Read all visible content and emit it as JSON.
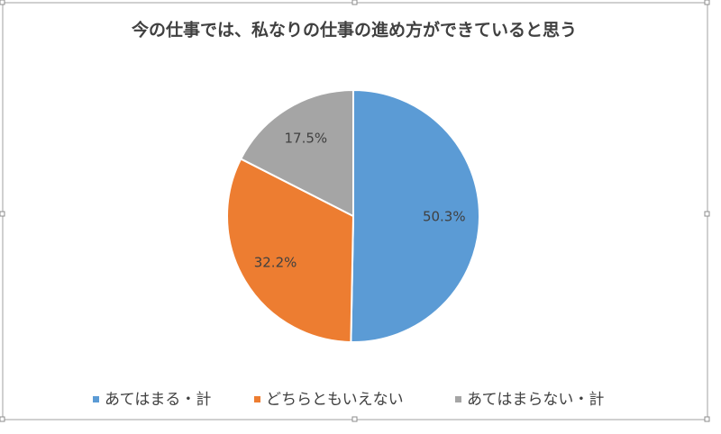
{
  "chart_data": {
    "type": "pie",
    "title": "今の仕事では、私なりの仕事の進め方ができていると思う",
    "categories": [
      "あてはまる・計",
      "どちらともいえない",
      "あてはまらない・計"
    ],
    "values": [
      50.3,
      32.2,
      17.5
    ],
    "value_labels": [
      "50.3%",
      "32.2%",
      "17.5%"
    ],
    "colors": [
      "#5b9bd5",
      "#ed7d31",
      "#a5a5a5"
    ],
    "legend": "bottom"
  }
}
